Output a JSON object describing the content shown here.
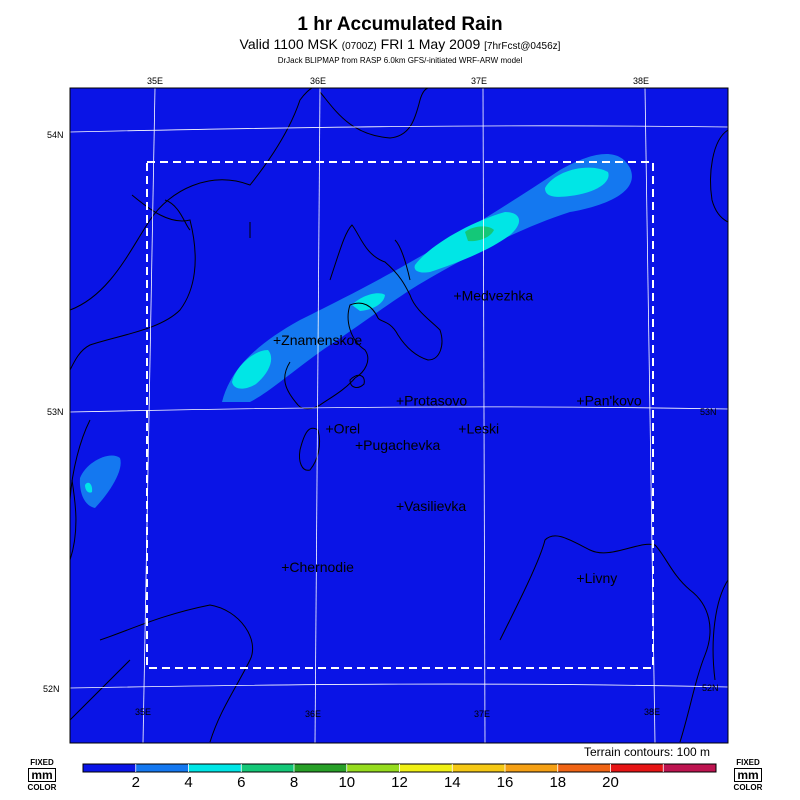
{
  "header": {
    "title": "1 hr Accumulated Rain",
    "valid_label": "Valid 1100 MSK",
    "utc_time": "(0700Z)",
    "date_label": "FRI 1 May 2009",
    "forecast_info": "[7hrFcst@0456z]",
    "credit": "DrJack BLIPMAP from RASP 6.0km GFS/-initiated WRF-ARW model"
  },
  "map": {
    "longitude_labels": [
      "35E",
      "36E",
      "37E",
      "38E"
    ],
    "latitude_labels": [
      "54N",
      "53N",
      "52N"
    ],
    "towns": [
      {
        "name": "Medvezhka",
        "lon": 36.85,
        "lat": 53.41
      },
      {
        "name": "Znamenskoe",
        "lon": 35.75,
        "lat": 53.25
      },
      {
        "name": "Protasovo",
        "lon": 36.5,
        "lat": 53.03
      },
      {
        "name": "Pan'kovo",
        "lon": 37.6,
        "lat": 53.03
      },
      {
        "name": "Orel",
        "lon": 36.07,
        "lat": 52.93
      },
      {
        "name": "Leski",
        "lon": 36.88,
        "lat": 52.93
      },
      {
        "name": "Pugachevka",
        "lon": 36.25,
        "lat": 52.87
      },
      {
        "name": "Vasilievka",
        "lon": 36.5,
        "lat": 52.65
      },
      {
        "name": "Chernodie",
        "lon": 35.8,
        "lat": 52.43
      },
      {
        "name": "Livny",
        "lon": 37.6,
        "lat": 52.39
      }
    ],
    "terrain_note": "Terrain contours: 100 m"
  },
  "colorbar": {
    "unit_box": {
      "top": "FIXED",
      "unit": "mm",
      "bottom": "COLOR"
    },
    "tick_labels": [
      "2",
      "4",
      "6",
      "8",
      "10",
      "12",
      "14",
      "16",
      "18",
      "20"
    ],
    "colors": [
      "#0a14e6",
      "#1478f0",
      "#00e6e6",
      "#14c878",
      "#28a028",
      "#96dc1e",
      "#f0f014",
      "#f5c814",
      "#f5a014",
      "#f06414",
      "#e61414",
      "#be1450"
    ]
  },
  "chart_data": {
    "type": "heatmap",
    "variable": "1 hr Accumulated Rain",
    "units": "mm",
    "lon_range": [
      34.1,
      38.45
    ],
    "lat_range": [
      51.8,
      54.2
    ],
    "levels": [
      0,
      2,
      4,
      6,
      8,
      10,
      12,
      14,
      16,
      18,
      20
    ],
    "features": [
      {
        "name": "main band, NE part",
        "lon_range": [
          36.3,
          37.9
        ],
        "lat_range": [
          53.3,
          53.9
        ],
        "max_mm": 8
      },
      {
        "name": "main band, SW part",
        "lon_range": [
          35.5,
          36.6
        ],
        "lat_range": [
          53.05,
          53.45
        ],
        "max_mm": 6
      },
      {
        "name": "west cell",
        "lon_range": [
          34.1,
          34.5
        ],
        "lat_range": [
          52.65,
          52.85
        ],
        "max_mm": 6
      }
    ]
  }
}
